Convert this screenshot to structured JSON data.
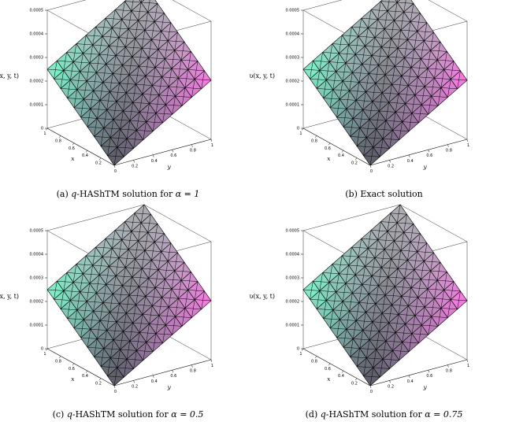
{
  "chart_data": [
    {
      "type": "surface",
      "caption": {
        "prefix": "(a) ",
        "var": "q",
        "text": "-HAShTM solution for ",
        "param": "α = 1"
      },
      "zlabel": "υ(x, y, t)",
      "xlabel": "x",
      "ylabel": "y",
      "x_ticks": [
        "1",
        "0.8",
        "0.6",
        "0.4",
        "0.2"
      ],
      "y_ticks": [
        "0",
        "0.2",
        "0.4",
        "0.6",
        "0.8",
        "1"
      ],
      "z_ticks": [
        "0",
        "0.0001",
        "0.0002",
        "0.0003",
        "0.0004",
        "0.0005"
      ],
      "zlim": [
        0,
        0.0005
      ]
    },
    {
      "type": "surface",
      "caption": {
        "prefix": "(b) Exact solution",
        "var": "",
        "text": "",
        "param": ""
      },
      "zlabel": "υ(x, y, t)",
      "xlabel": "x",
      "ylabel": "y",
      "x_ticks": [
        "1",
        "0.8",
        "0.6",
        "0.4",
        "0.2"
      ],
      "y_ticks": [
        "0",
        "0.2",
        "0.4",
        "0.6",
        "0.8",
        "1"
      ],
      "z_ticks": [
        "0",
        "0.0001",
        "0.0002",
        "0.0003",
        "0.0004",
        "0.0005"
      ],
      "zlim": [
        0,
        0.0005
      ]
    },
    {
      "type": "surface",
      "caption": {
        "prefix": "(c) ",
        "var": "q",
        "text": "-HAShTM solution for ",
        "param": "α = 0.5"
      },
      "zlabel": "υ(x, y, t)",
      "xlabel": "x",
      "ylabel": "y",
      "x_ticks": [
        "1",
        "0.8",
        "0.6",
        "0.4",
        "0.2"
      ],
      "y_ticks": [
        "0",
        "0.2",
        "0.4",
        "0.6",
        "0.8",
        "1"
      ],
      "z_ticks": [
        "0",
        "0.0001",
        "0.0002",
        "0.0003",
        "0.0004",
        "0.0005"
      ],
      "zlim": [
        0,
        0.0005
      ]
    },
    {
      "type": "surface",
      "caption": {
        "prefix": "(d) ",
        "var": "q",
        "text": "-HAShTM solution for ",
        "param": "α = 0.75"
      },
      "zlabel": "υ(x, y, t)",
      "xlabel": "x",
      "ylabel": "y",
      "x_ticks": [
        "1",
        "0.8",
        "0.6",
        "0.4",
        "0.2"
      ],
      "y_ticks": [
        "0",
        "0.2",
        "0.4",
        "0.6",
        "0.8",
        "1"
      ],
      "z_ticks": [
        "0",
        "0.0001",
        "0.0002",
        "0.0003",
        "0.0004",
        "0.0005"
      ],
      "zlim": [
        0,
        0.0005
      ]
    }
  ]
}
